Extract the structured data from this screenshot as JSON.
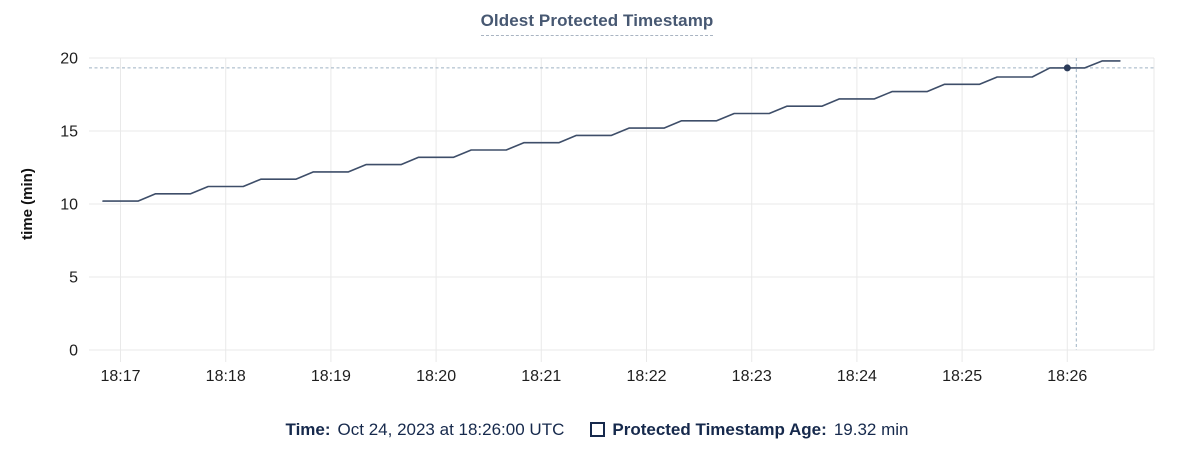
{
  "chart": {
    "title": "Oldest Protected Timestamp"
  },
  "legend": {
    "time_label": "Time:",
    "time_value": "Oct 24, 2023 at 18:26:00 UTC",
    "series_label": "Protected Timestamp Age:",
    "series_value": "19.32 min"
  },
  "colors": {
    "title": "#475872",
    "line": "#3e4e69",
    "dot": "#2c3c5a",
    "grid": "#e9e9e9",
    "crosshair": "#9fb2c4",
    "tick_text": "#1e1e1e",
    "legend_text": "#16294c"
  },
  "chart_data": {
    "type": "line",
    "title": "Oldest Protected Timestamp",
    "xlabel": "",
    "ylabel": "time (min)",
    "ylim": [
      0,
      20
    ],
    "yticks": [
      0,
      5,
      10,
      15,
      20
    ],
    "xticks": [
      "18:17",
      "18:18",
      "18:19",
      "18:20",
      "18:21",
      "18:22",
      "18:23",
      "18:24",
      "18:25",
      "18:26"
    ],
    "grid": true,
    "legend_position": "bottom",
    "hover_point": {
      "time": "18:26:00",
      "value": 19.32,
      "time_text": "Oct 24, 2023 at 18:26:00 UTC"
    },
    "series": [
      {
        "name": "Protected Timestamp Age",
        "unit": "min",
        "points": [
          [
            "18:16:50",
            10.2
          ],
          [
            "18:17:00",
            10.2
          ],
          [
            "18:17:10",
            10.2
          ],
          [
            "18:17:20",
            10.7
          ],
          [
            "18:17:30",
            10.7
          ],
          [
            "18:17:40",
            10.7
          ],
          [
            "18:17:50",
            11.2
          ],
          [
            "18:18:00",
            11.2
          ],
          [
            "18:18:10",
            11.2
          ],
          [
            "18:18:20",
            11.7
          ],
          [
            "18:18:30",
            11.7
          ],
          [
            "18:18:40",
            11.7
          ],
          [
            "18:18:50",
            12.2
          ],
          [
            "18:19:00",
            12.2
          ],
          [
            "18:19:10",
            12.2
          ],
          [
            "18:19:20",
            12.7
          ],
          [
            "18:19:30",
            12.7
          ],
          [
            "18:19:40",
            12.7
          ],
          [
            "18:19:50",
            13.2
          ],
          [
            "18:20:00",
            13.2
          ],
          [
            "18:20:10",
            13.2
          ],
          [
            "18:20:20",
            13.7
          ],
          [
            "18:20:30",
            13.7
          ],
          [
            "18:20:40",
            13.7
          ],
          [
            "18:20:50",
            14.2
          ],
          [
            "18:21:00",
            14.2
          ],
          [
            "18:21:10",
            14.2
          ],
          [
            "18:21:20",
            14.7
          ],
          [
            "18:21:30",
            14.7
          ],
          [
            "18:21:40",
            14.7
          ],
          [
            "18:21:50",
            15.2
          ],
          [
            "18:22:00",
            15.2
          ],
          [
            "18:22:10",
            15.2
          ],
          [
            "18:22:20",
            15.7
          ],
          [
            "18:22:30",
            15.7
          ],
          [
            "18:22:40",
            15.7
          ],
          [
            "18:22:50",
            16.2
          ],
          [
            "18:23:00",
            16.2
          ],
          [
            "18:23:10",
            16.2
          ],
          [
            "18:23:20",
            16.7
          ],
          [
            "18:23:30",
            16.7
          ],
          [
            "18:23:40",
            16.7
          ],
          [
            "18:23:50",
            17.2
          ],
          [
            "18:24:00",
            17.2
          ],
          [
            "18:24:10",
            17.2
          ],
          [
            "18:24:20",
            17.7
          ],
          [
            "18:24:30",
            17.7
          ],
          [
            "18:24:40",
            17.7
          ],
          [
            "18:24:50",
            18.2
          ],
          [
            "18:25:00",
            18.2
          ],
          [
            "18:25:10",
            18.2
          ],
          [
            "18:25:20",
            18.7
          ],
          [
            "18:25:30",
            18.7
          ],
          [
            "18:25:40",
            18.7
          ],
          [
            "18:25:50",
            19.32
          ],
          [
            "18:26:00",
            19.32
          ],
          [
            "18:26:10",
            19.32
          ],
          [
            "18:26:20",
            19.8
          ],
          [
            "18:26:30",
            19.8
          ]
        ]
      }
    ]
  }
}
